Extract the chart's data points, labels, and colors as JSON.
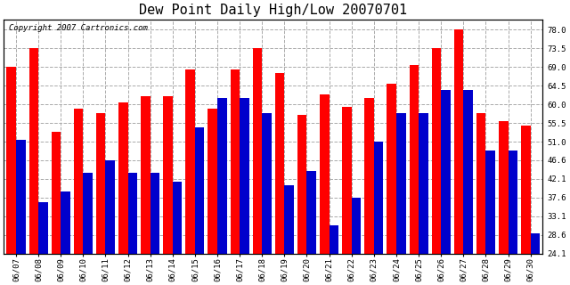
{
  "title": "Dew Point Daily High/Low 20070701",
  "copyright": "Copyright 2007 Cartronics.com",
  "ylabel_right": [
    "78.0",
    "73.5",
    "69.0",
    "64.5",
    "60.0",
    "55.5",
    "51.0",
    "46.6",
    "42.1",
    "37.6",
    "33.1",
    "28.6",
    "24.1"
  ],
  "yticks": [
    78.0,
    73.5,
    69.0,
    64.5,
    60.0,
    55.5,
    51.0,
    46.6,
    42.1,
    37.6,
    33.1,
    28.6,
    24.1
  ],
  "ylim": [
    24.1,
    80.5
  ],
  "dates": [
    "06/07",
    "06/08",
    "06/09",
    "06/10",
    "06/11",
    "06/12",
    "06/13",
    "06/14",
    "06/15",
    "06/16",
    "06/17",
    "06/18",
    "06/19",
    "06/20",
    "06/21",
    "06/22",
    "06/23",
    "06/24",
    "06/25",
    "06/26",
    "06/27",
    "06/28",
    "06/29",
    "06/30"
  ],
  "highs": [
    69.0,
    73.5,
    53.5,
    59.0,
    58.0,
    60.5,
    62.0,
    62.0,
    68.5,
    59.0,
    68.5,
    73.5,
    67.5,
    57.5,
    62.5,
    59.5,
    61.5,
    65.0,
    69.5,
    73.5,
    78.0,
    58.0,
    56.0,
    55.0
  ],
  "lows": [
    51.5,
    36.5,
    39.0,
    43.5,
    46.5,
    43.5,
    43.5,
    41.5,
    54.5,
    61.5,
    61.5,
    58.0,
    40.5,
    44.0,
    31.0,
    37.5,
    51.0,
    58.0,
    58.0,
    63.5,
    63.5,
    49.0,
    49.0,
    29.0
  ],
  "bar_width": 0.42,
  "high_color": "#ff0000",
  "low_color": "#0000cc",
  "bg_color": "#ffffff",
  "plot_bg_color": "#ffffff",
  "grid_color": "#aaaaaa",
  "title_fontsize": 11,
  "tick_fontsize": 6.5,
  "copyright_fontsize": 6.5
}
